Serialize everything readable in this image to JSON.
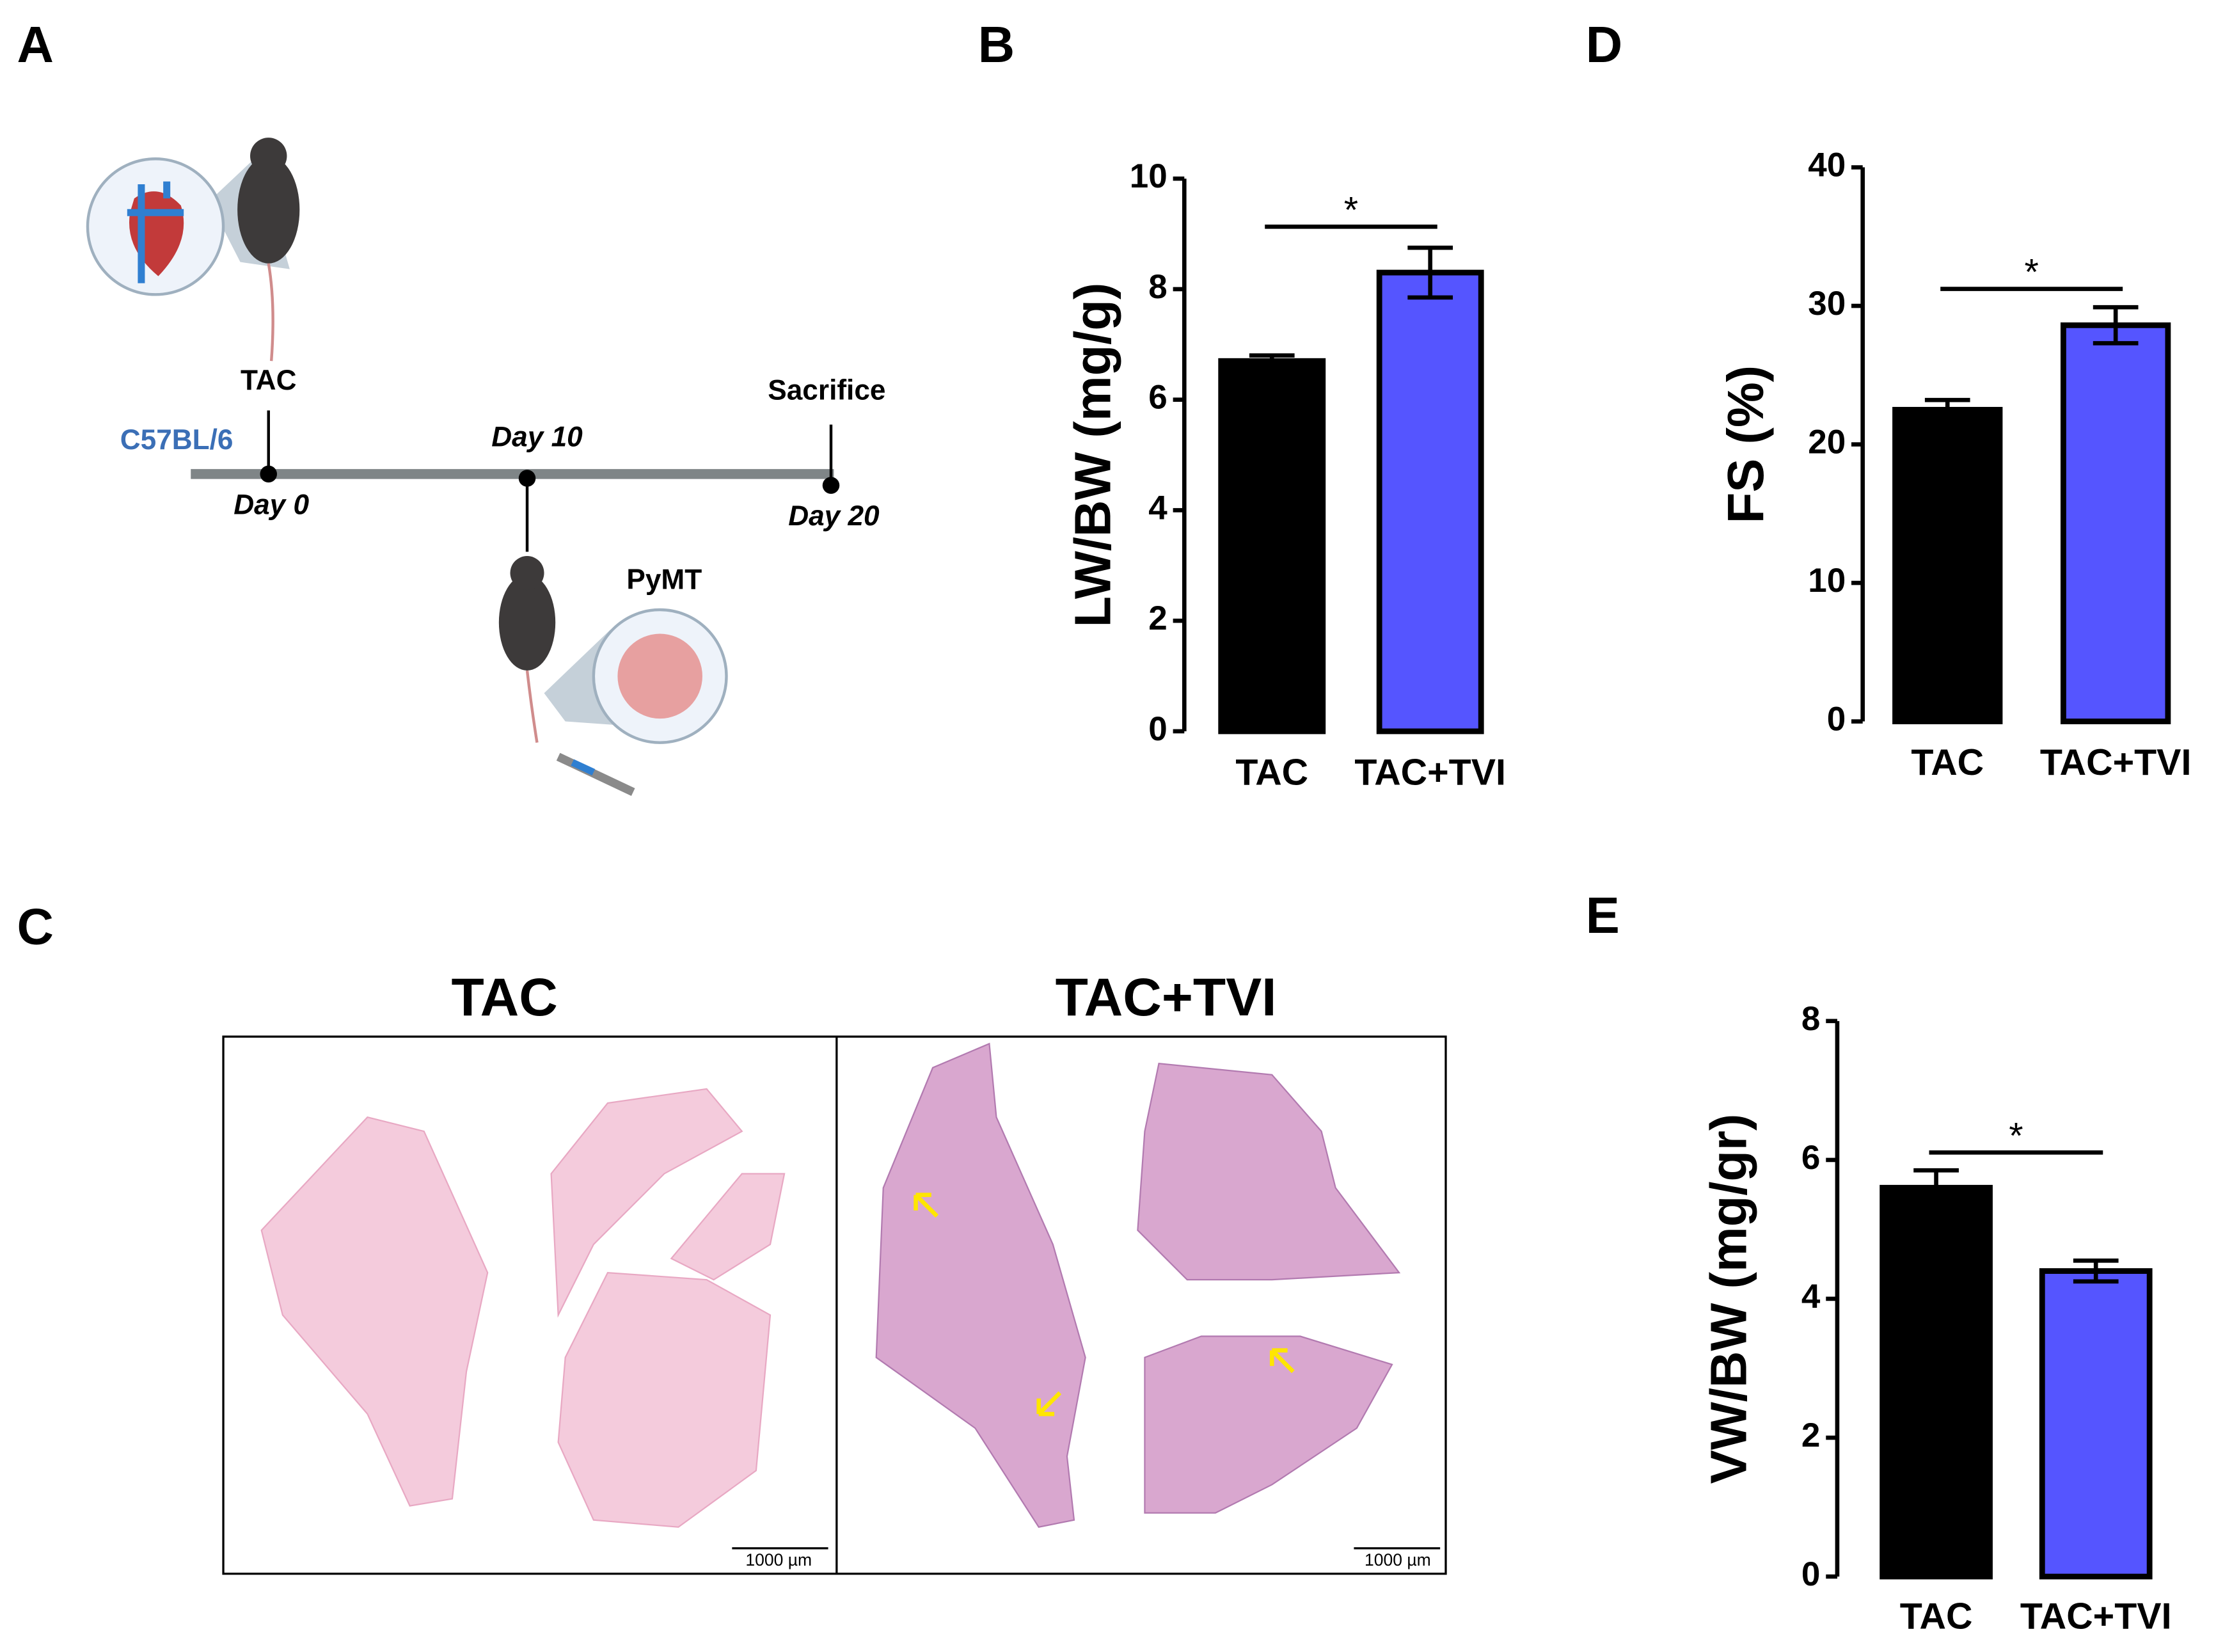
{
  "panel_labels": [
    "A",
    "B",
    "C",
    "D",
    "E"
  ],
  "timeline": {
    "strain": "C57BL/6",
    "events": [
      {
        "label": "TAC",
        "day": "Day 0"
      },
      {
        "label": "PyMT",
        "day": "Day 10"
      },
      {
        "label": "Sacrifice",
        "day": "Day 20"
      }
    ]
  },
  "histology": {
    "titles": [
      "TAC",
      "TAC+TVI"
    ],
    "scale_bars": [
      "1000 µm",
      "1000 µm"
    ]
  },
  "chart_data": [
    {
      "type": "bar",
      "ylabel": "LW/BW (mg/g)",
      "categories": [
        "TAC",
        "TAC+TVI"
      ],
      "values": [
        6.7,
        8.3
      ],
      "errors": [
        0.1,
        0.45
      ],
      "colors": [
        "#000000",
        "#5555ff"
      ],
      "ylim": [
        0,
        10
      ],
      "yticks": [
        0,
        2,
        4,
        6,
        8,
        10
      ],
      "significance": "*"
    },
    {
      "type": "bar",
      "ylabel": "FS (%)",
      "categories": [
        "TAC",
        "TAC+TVI"
      ],
      "values": [
        22.5,
        28.6
      ],
      "errors": [
        0.7,
        1.3
      ],
      "colors": [
        "#000000",
        "#5555ff"
      ],
      "ylim": [
        0,
        40
      ],
      "yticks": [
        0,
        10,
        20,
        30,
        40
      ],
      "significance": "*"
    },
    {
      "type": "bar",
      "ylabel": "VW/BW (mg/gr)",
      "categories": [
        "TAC",
        "TAC+TVI"
      ],
      "values": [
        5.6,
        4.4
      ],
      "errors": [
        0.25,
        0.15
      ],
      "colors": [
        "#000000",
        "#5555ff"
      ],
      "ylim": [
        0,
        8
      ],
      "yticks": [
        0,
        2,
        4,
        6,
        8
      ],
      "significance": "*"
    }
  ]
}
